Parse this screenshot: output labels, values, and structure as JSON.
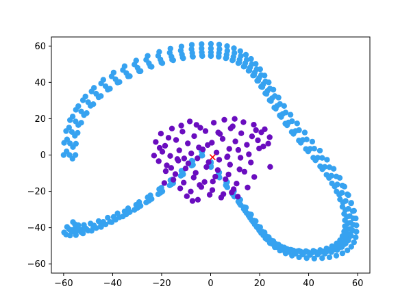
{
  "chart_data": {
    "type": "scatter",
    "title": "",
    "xlabel": "",
    "ylabel": "",
    "xlim": [
      -65,
      65
    ],
    "ylim": [
      -65,
      65
    ],
    "xticks": [
      -60,
      -40,
      -20,
      0,
      20,
      40,
      60
    ],
    "yticks": [
      -60,
      -40,
      -20,
      0,
      20,
      40,
      60
    ],
    "xtick_labels": [
      "−60",
      "−40",
      "−20",
      "0",
      "20",
      "40",
      "60"
    ],
    "ytick_labels": [
      "−60",
      "−40",
      "−20",
      "0",
      "20",
      "40",
      "60"
    ],
    "grid": false,
    "legend": "none",
    "series": [
      {
        "kind": "ring",
        "color": "#36a2f0",
        "x": [
          -60.0,
          -59.8,
          -59.0,
          -57.4,
          -55.0,
          -52.1,
          -48.6,
          -44.7,
          -40.4,
          -35.8,
          -31.1,
          -26.3,
          -21.4,
          -16.7,
          -12.2,
          -7.8,
          -3.7,
          0.1,
          3.6,
          6.8,
          9.7,
          12.3,
          14.7,
          16.8,
          18.8,
          20.6,
          22.4,
          24.2,
          26.2,
          28.3,
          30.6,
          33.2,
          36.1,
          39.2,
          42.3,
          45.5,
          48.5,
          51.3,
          53.8,
          55.8,
          57.4,
          58.5,
          59.2,
          59.5,
          59.5,
          59.2,
          58.5,
          57.4,
          55.8,
          53.8,
          51.3,
          48.5,
          45.5,
          42.3,
          39.2,
          36.1,
          33.2,
          30.6,
          28.3,
          26.2,
          24.2,
          22.4,
          20.6,
          18.8,
          16.8,
          14.7,
          12.3,
          9.7,
          6.8,
          3.6,
          0.1,
          -3.7,
          -7.8,
          -12.2,
          -16.7,
          -21.4,
          -26.3,
          -31.1,
          -35.8,
          -40.4,
          -44.7,
          -48.6,
          -52.1,
          -55.0,
          -57.4,
          -59.0,
          -59.8,
          -57.6,
          -57.4,
          -56.6,
          -55.1,
          -52.8,
          -50.0,
          -46.7,
          -42.9,
          -38.8,
          -34.4,
          -29.8,
          -25.2,
          -20.5,
          -16.0,
          -11.7,
          -7.5,
          -3.6,
          0.1,
          3.4,
          6.5,
          9.3,
          11.8,
          14.1,
          16.1,
          18.0,
          19.8,
          21.5,
          23.2,
          25.1,
          27.1,
          29.4,
          31.8,
          34.6,
          37.6,
          40.6,
          43.7,
          46.6,
          49.3,
          51.7,
          53.6,
          55.1,
          56.2,
          56.8,
          57.1,
          57.1,
          56.8,
          56.2,
          55.1,
          53.6,
          51.7,
          49.3,
          46.6,
          43.7,
          40.6,
          37.6,
          34.6,
          31.8,
          29.4,
          27.1,
          25.1,
          23.2,
          21.5,
          19.8,
          18.0,
          16.1,
          14.1,
          11.8,
          9.3,
          6.5,
          3.4,
          0.1,
          -3.6,
          -7.5,
          -11.7,
          -16.0,
          -20.5,
          -25.2,
          -29.8,
          -34.4,
          -38.8,
          -42.9,
          -46.7,
          -50.0,
          -52.8,
          -55.1,
          -56.6,
          -57.4,
          -55.2,
          -55.0,
          -54.3,
          -52.8,
          -50.6,
          -47.9,
          -44.8,
          -41.1,
          -37.2,
          -33.0,
          -28.6,
          -24.1,
          -19.7,
          -15.3,
          -11.2,
          -7.2,
          -3.4,
          0.1,
          3.3,
          6.2,
          8.9,
          11.3,
          13.5,
          15.5,
          17.3,
          19.0,
          20.6,
          22.3,
          24.1,
          26.0,
          28.2,
          30.5,
          33.1,
          36.0,
          38.9,
          41.9,
          44.7,
          47.3,
          49.5,
          51.4,
          52.8,
          53.8,
          54.5,
          54.8,
          54.8,
          54.5,
          53.8,
          52.8,
          51.4,
          49.5,
          47.3,
          44.7,
          41.9,
          38.9,
          36.0,
          33.1,
          30.5,
          28.2,
          26.0,
          24.1,
          22.3,
          20.6,
          19.0,
          17.3,
          15.5,
          13.5,
          11.3,
          8.9,
          6.2,
          3.3,
          0.1,
          -3.4,
          -7.2,
          -11.2,
          -15.3,
          -19.7,
          -24.1,
          -28.6,
          -33.0,
          -37.2,
          -41.1,
          -44.8,
          -47.9,
          -50.6,
          -52.8,
          -54.3,
          -55.0,
          -58.8,
          -58.6,
          -57.8,
          -56.3,
          -54.0,
          -51.1,
          -47.6,
          -43.8,
          -39.6,
          -35.1,
          -30.4,
          -25.7,
          -21.0,
          -16.4,
          -11.9,
          -7.7,
          -3.7,
          0.1,
          3.5,
          6.7,
          9.5,
          12.1,
          14.4,
          16.5,
          18.4,
          20.2,
          22.0,
          23.7,
          25.6,
          27.7,
          30.0,
          32.6,
          35.3,
          38.4,
          41.5,
          44.6,
          47.5,
          50.2,
          52.7,
          54.6,
          56.2,
          57.3,
          58.0,
          58.3,
          58.3,
          58.0,
          57.3,
          56.2,
          54.6,
          52.7,
          50.2,
          47.5,
          44.6,
          41.5,
          38.4,
          35.3,
          32.6,
          30.0,
          27.7,
          25.6,
          23.7,
          22.0,
          20.2,
          18.4,
          16.5,
          14.4,
          12.1,
          9.5,
          6.7,
          3.5,
          0.1,
          -3.7,
          -7.7,
          -11.9,
          -16.4,
          -21.0,
          -25.7,
          -30.4,
          -35.1,
          -39.6,
          -43.8,
          -47.6,
          -51.1,
          -54.0,
          -56.3,
          -57.8,
          -58.6,
          -56.4,
          -56.2,
          -55.4,
          -54.0,
          -51.7,
          -49.0,
          -45.7,
          -42.0,
          -38.0,
          -33.7,
          -29.2,
          -24.6,
          -20.1,
          -15.7,
          -11.4,
          -7.4,
          -3.5,
          0.1,
          3.3,
          6.4,
          9.1,
          11.6,
          13.8,
          15.8,
          17.7,
          19.4,
          21.1,
          22.8,
          24.6,
          26.6,
          28.8,
          31.2,
          33.8,
          36.8,
          39.8,
          42.8,
          45.6,
          48.3,
          50.6,
          52.5,
          54.0,
          55.0,
          55.6,
          56.0,
          56.0,
          55.6,
          55.0,
          54.0,
          52.5,
          50.6,
          48.3,
          45.6,
          42.8,
          39.8,
          36.8,
          33.8,
          31.2,
          28.8,
          26.6,
          24.6,
          22.8,
          21.1,
          19.4,
          17.7,
          15.8,
          13.8,
          11.6,
          9.1,
          6.4,
          3.3,
          0.1,
          -3.5,
          -7.4,
          -11.4,
          -15.7,
          -20.1,
          -24.6,
          -29.2,
          -33.7,
          -38.0,
          -42.0,
          -45.7,
          -49.0,
          -51.7,
          -54.0,
          -55.4,
          -56.2
        ],
        "y": [
          0.0,
          6.7,
          13.2,
          19.2,
          24.9,
          30.2,
          35.0,
          39.4,
          43.3,
          46.8,
          49.8,
          52.4,
          54.6,
          56.3,
          57.5,
          58.3,
          58.7,
          58.7,
          58.3,
          57.4,
          56.2,
          54.5,
          52.4,
          50.0,
          47.2,
          44.0,
          40.5,
          36.6,
          32.5,
          28.1,
          23.4,
          18.6,
          13.7,
          8.6,
          3.5,
          -1.6,
          -6.7,
          -11.8,
          -16.8,
          -21.6,
          -26.3,
          -30.7,
          -34.9,
          -38.7,
          -42.2,
          -45.3,
          -48.1,
          -50.5,
          -52.5,
          -54.1,
          -55.4,
          -56.3,
          -56.8,
          -57.0,
          -56.8,
          -56.3,
          -55.4,
          -54.2,
          -52.6,
          -50.7,
          -48.5,
          -45.9,
          -42.9,
          -39.6,
          -35.9,
          -31.9,
          -27.6,
          -22.9,
          -17.8,
          -12.4,
          -6.6,
          -0.3,
          -5.8,
          -11.4,
          -16.7,
          -21.6,
          -26.1,
          -30.2,
          -33.8,
          -37.0,
          -39.6,
          -41.7,
          -43.2,
          -44.1,
          -44.3,
          -43.8,
          -42.6,
          0.0,
          6.4,
          12.7,
          18.5,
          24.0,
          29.1,
          33.7,
          37.9,
          41.7,
          45.1,
          48.0,
          50.5,
          52.6,
          54.2,
          55.4,
          56.2,
          56.6,
          56.6,
          56.2,
          55.3,
          54.1,
          52.5,
          50.5,
          48.2,
          45.5,
          42.4,
          39.0,
          35.3,
          31.3,
          27.0,
          22.6,
          17.9,
          13.2,
          8.3,
          3.4,
          -1.5,
          -6.5,
          -11.4,
          -16.2,
          -20.8,
          -25.3,
          -29.6,
          -33.6,
          -37.3,
          -40.7,
          -43.7,
          -46.4,
          -48.7,
          -50.6,
          -52.2,
          -53.4,
          -54.3,
          -54.8,
          -55.0,
          -54.8,
          -54.3,
          -53.4,
          -52.3,
          -50.7,
          -48.9,
          -46.7,
          -44.2,
          -41.4,
          -38.2,
          -34.6,
          -30.7,
          -26.6,
          -22.1,
          -17.2,
          -12.0,
          -6.4,
          -0.3,
          -5.6,
          -11.0,
          -16.1,
          -20.8,
          -25.2,
          -29.1,
          -32.6,
          -35.6,
          -38.2,
          -40.2,
          -41.6,
          -42.5,
          -42.7,
          -42.2,
          -41.1,
          0.0,
          6.2,
          12.2,
          17.8,
          23.1,
          28.0,
          32.5,
          36.5,
          40.2,
          43.4,
          46.2,
          48.6,
          50.6,
          52.2,
          53.3,
          54.1,
          54.5,
          54.5,
          54.1,
          53.3,
          52.1,
          50.6,
          48.7,
          46.4,
          43.8,
          40.9,
          37.6,
          34.0,
          30.2,
          26.1,
          21.8,
          17.3,
          12.7,
          8.0,
          3.3,
          -1.5,
          -6.2,
          -10.9,
          -15.6,
          -20.1,
          -24.4,
          -28.5,
          -32.4,
          -35.9,
          -39.2,
          -42.1,
          -44.7,
          -46.9,
          -48.7,
          -50.2,
          -51.4,
          -52.3,
          -52.7,
          -52.9,
          -52.7,
          -52.3,
          -51.4,
          -50.3,
          -48.8,
          -47.1,
          -45.0,
          -42.6,
          -39.8,
          -36.8,
          -33.3,
          -29.6,
          -25.6,
          -21.3,
          -16.6,
          -11.5,
          -6.1,
          -0.3,
          -5.4,
          -10.6,
          -15.5,
          -20.0,
          -24.2,
          -28.0,
          -31.4,
          -34.3,
          -36.8,
          -38.7,
          -40.1,
          -40.9,
          -41.1,
          -40.6,
          -39.5,
          2.0,
          8.6,
          15.1,
          21.2,
          26.9,
          32.2,
          37.0,
          41.4,
          45.4,
          48.9,
          52.0,
          54.6,
          56.8,
          58.6,
          59.8,
          60.7,
          61.1,
          61.2,
          60.8,
          60.0,
          58.8,
          57.2,
          55.2,
          52.9,
          50.2,
          47.2,
          43.8,
          40.0,
          36.0,
          31.6,
          27.0,
          22.2,
          17.4,
          12.4,
          7.4,
          2.4,
          -2.6,
          -7.6,
          -12.6,
          -17.4,
          -22.1,
          -26.6,
          -30.9,
          -34.8,
          -38.4,
          -41.6,
          -44.5,
          -47.0,
          -49.1,
          -50.8,
          -52.1,
          -53.0,
          -53.6,
          -53.7,
          -53.5,
          -53.0,
          -52.1,
          -50.9,
          -49.3,
          -47.4,
          -45.2,
          -42.6,
          -39.7,
          -36.4,
          -32.8,
          -28.9,
          -24.6,
          -19.9,
          -14.9,
          -9.6,
          -3.9,
          2.2,
          -3.2,
          -8.7,
          -13.9,
          -18.8,
          -23.3,
          -27.4,
          -31.0,
          -34.1,
          -36.8,
          -38.8,
          -40.3,
          -41.1,
          -41.3,
          -40.8,
          -39.6,
          -2.0,
          4.4,
          10.6,
          16.5,
          22.0,
          27.1,
          31.8,
          36.0,
          39.9,
          43.3,
          46.2,
          48.8,
          50.9,
          52.5,
          53.7,
          54.5,
          54.9,
          54.9,
          54.5,
          53.6,
          52.4,
          50.8,
          48.8,
          46.5,
          43.9,
          40.9,
          37.5,
          33.7,
          29.7,
          25.5,
          21.0,
          16.4,
          11.7,
          6.8,
          2.0,
          -2.9,
          -7.8,
          -12.6,
          -17.3,
          -21.8,
          -26.1,
          -30.2,
          -34.0,
          -37.5,
          -40.7,
          -43.5,
          -46.0,
          -48.1,
          -49.8,
          -51.2,
          -52.3,
          -53.0,
          -53.4,
          -53.5,
          -53.2,
          -52.6,
          -51.7,
          -50.4,
          -48.9,
          -47.0,
          -44.8,
          -42.2,
          -39.4,
          -36.1,
          -32.6,
          -28.7,
          -24.5,
          -19.9,
          -15.0,
          -9.8,
          -4.3,
          1.7,
          -3.4,
          -8.6,
          -13.5,
          -18.0,
          -22.2,
          -25.9,
          -29.3,
          -32.1,
          -34.5,
          -36.4,
          -37.7,
          -38.5,
          -38.6,
          -38.1,
          -36.9
        ]
      },
      {
        "kind": "cluster",
        "color": "#6a0dbf",
        "x": [
          -8.5,
          -12.0,
          -4.2,
          1.3,
          5.6,
          9.8,
          13.4,
          17.6,
          22.1,
          -15.8,
          -20.3,
          -17.2,
          -11.5,
          -6.7,
          -2.1,
          3.8,
          8.2,
          12.5,
          16.9,
          20.7,
          24.1,
          -22.4,
          -18.6,
          -14.1,
          -9.3,
          -4.8,
          0.5,
          4.9,
          10.1,
          14.8,
          19.3,
          23.5,
          -19.7,
          -16.5,
          -12.8,
          -7.9,
          -3.2,
          2.4,
          6.7,
          11.3,
          15.6,
          19.8,
          -21.2,
          -17.9,
          -13.6,
          -9.1,
          -5.4,
          -0.8,
          3.5,
          7.9,
          12.2,
          16.4,
          -18.3,
          -14.4,
          -10.2,
          -6.1,
          -1.7,
          2.9,
          7.3,
          11.8,
          -15.2,
          -11.0,
          -6.9,
          -2.5,
          1.9,
          6.1,
          10.6,
          -12.4,
          -8.1,
          -3.8,
          0.7,
          5.2,
          9.4,
          -9.7,
          -5.2,
          -0.4,
          4.3,
          8.6,
          -20.8,
          -16.1,
          -4.5,
          6.9,
          13.8,
          21.5,
          -23.1,
          -13.2,
          0.9,
          9.0,
          17.8,
          24.3,
          -7.4,
          3.1,
          15.1,
          -1.2,
          -10.8,
          11.1,
          18.5,
          -18.9,
          -5.8,
          7.6
        ],
        "y": [
          18.5,
          16.2,
          15.0,
          17.8,
          19.4,
          19.9,
          18.1,
          16.7,
          14.2,
          14.6,
          11.8,
          9.5,
          12.9,
          10.4,
          13.2,
          11.6,
          14.7,
          12.0,
          10.3,
          12.5,
          9.8,
          7.2,
          5.1,
          8.3,
          6.4,
          4.2,
          6.8,
          8.9,
          7.5,
          5.6,
          8.1,
          6.3,
          1.8,
          -0.5,
          2.6,
          0.9,
          3.1,
          1.4,
          -1.2,
          2.8,
          0.4,
          3.6,
          -3.4,
          -5.7,
          -2.2,
          -4.6,
          -1.8,
          -3.9,
          -2.6,
          -5.3,
          -1.5,
          -4.1,
          -8.9,
          -10.5,
          -7.4,
          -9.8,
          -6.6,
          -8.3,
          -10.7,
          -7.9,
          -13.6,
          -15.2,
          -12.4,
          -14.8,
          -11.9,
          -13.3,
          -15.7,
          -18.4,
          -20.1,
          -17.6,
          -19.3,
          -21.5,
          -18.8,
          -22.7,
          -24.6,
          -21.9,
          -23.4,
          -20.6,
          3.9,
          -7.1,
          -16.5,
          -0.8,
          -9.2,
          4.7,
          -0.3,
          -3.1,
          -14.6,
          15.8,
          -12.1,
          -6.5,
          -25.3,
          12.4,
          -17.9,
          5.5,
          -1.9,
          -22.9,
          13.7,
          -15.4,
          16.6,
          3.4
        ]
      },
      {
        "kind": "marker",
        "color": "#ff0000",
        "marker": "x",
        "x": [
          0.8
        ],
        "y": [
          -1.2
        ]
      }
    ]
  }
}
